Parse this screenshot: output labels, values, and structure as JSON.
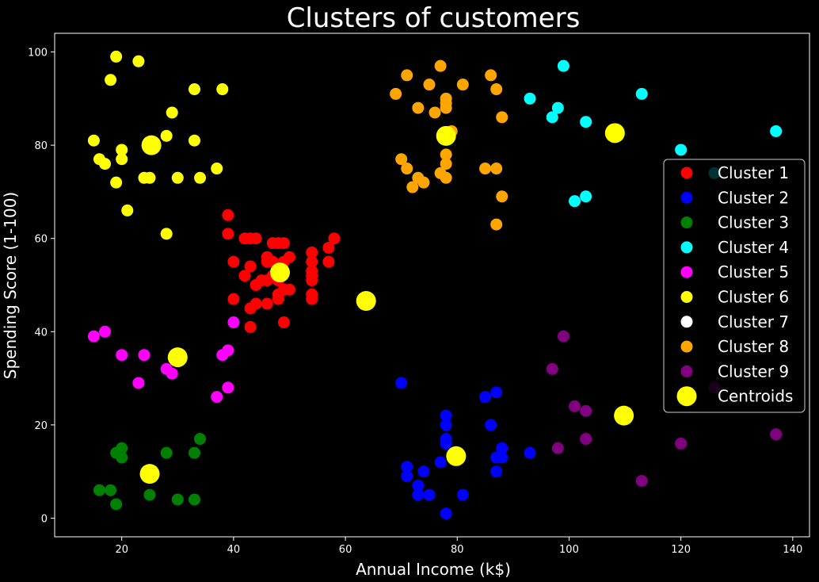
{
  "chart_data": {
    "type": "scatter",
    "title": "Clusters of customers",
    "xlabel": "Annual Income (k$)",
    "ylabel": "Spending Score (1-100)",
    "xlim": [
      8,
      143
    ],
    "ylim": [
      -4,
      104
    ],
    "xticks": [
      20,
      40,
      60,
      80,
      100,
      120,
      140
    ],
    "yticks": [
      0,
      20,
      40,
      60,
      80,
      100
    ],
    "grid": false,
    "legend_position": "right",
    "series": [
      {
        "name": "Cluster 1",
        "color": "#ff0000",
        "points": [
          [
            39,
            65
          ],
          [
            39,
            61
          ],
          [
            40,
            55
          ],
          [
            40,
            47
          ],
          [
            42,
            60
          ],
          [
            42,
            52
          ],
          [
            43,
            60
          ],
          [
            43,
            54
          ],
          [
            43,
            45
          ],
          [
            43,
            41
          ],
          [
            44,
            60
          ],
          [
            44,
            50
          ],
          [
            44,
            46
          ],
          [
            45,
            51
          ],
          [
            46,
            56
          ],
          [
            46,
            55
          ],
          [
            46,
            51
          ],
          [
            46,
            46
          ],
          [
            47,
            59
          ],
          [
            47,
            55
          ],
          [
            47,
            52
          ],
          [
            48,
            59
          ],
          [
            48,
            51
          ],
          [
            48,
            48
          ],
          [
            48,
            47
          ],
          [
            49,
            59
          ],
          [
            49,
            55
          ],
          [
            49,
            49
          ],
          [
            49,
            42
          ],
          [
            50,
            56
          ],
          [
            50,
            49
          ],
          [
            54,
            57
          ],
          [
            54,
            55
          ],
          [
            54,
            53
          ],
          [
            54,
            52
          ],
          [
            54,
            51
          ],
          [
            54,
            48
          ],
          [
            54,
            47
          ],
          [
            57,
            58
          ],
          [
            57,
            55
          ],
          [
            58,
            60
          ]
        ]
      },
      {
        "name": "Cluster 2",
        "color": "#0000ff",
        "points": [
          [
            70,
            29
          ],
          [
            71,
            11
          ],
          [
            71,
            9
          ],
          [
            73,
            7
          ],
          [
            73,
            5
          ],
          [
            74,
            10
          ],
          [
            75,
            5
          ],
          [
            77,
            12
          ],
          [
            78,
            22
          ],
          [
            78,
            20
          ],
          [
            78,
            17
          ],
          [
            78,
            16
          ],
          [
            78,
            1
          ],
          [
            81,
            5
          ],
          [
            85,
            26
          ],
          [
            86,
            20
          ],
          [
            87,
            27
          ],
          [
            87,
            13
          ],
          [
            87,
            10
          ],
          [
            88,
            15
          ],
          [
            88,
            13
          ],
          [
            93,
            14
          ]
        ]
      },
      {
        "name": "Cluster 3",
        "color": "#008000",
        "points": [
          [
            16,
            6
          ],
          [
            18,
            6
          ],
          [
            19,
            14
          ],
          [
            19,
            3
          ],
          [
            20,
            15
          ],
          [
            20,
            13
          ],
          [
            25,
            5
          ],
          [
            28,
            14
          ],
          [
            30,
            4
          ],
          [
            33,
            14
          ],
          [
            33,
            4
          ],
          [
            34,
            17
          ]
        ]
      },
      {
        "name": "Cluster 4",
        "color": "#00ffff",
        "points": [
          [
            93,
            90
          ],
          [
            97,
            86
          ],
          [
            98,
            88
          ],
          [
            99,
            97
          ],
          [
            101,
            68
          ],
          [
            103,
            85
          ],
          [
            103,
            69
          ],
          [
            113,
            91
          ],
          [
            120,
            79
          ],
          [
            126,
            74
          ],
          [
            137,
            83
          ]
        ]
      },
      {
        "name": "Cluster 5",
        "color": "#ff00ff",
        "points": [
          [
            15,
            39
          ],
          [
            17,
            40
          ],
          [
            20,
            35
          ],
          [
            23,
            29
          ],
          [
            24,
            35
          ],
          [
            28,
            32
          ],
          [
            29,
            31
          ],
          [
            37,
            26
          ],
          [
            38,
            35
          ],
          [
            39,
            36
          ],
          [
            39,
            28
          ],
          [
            40,
            42
          ]
        ]
      },
      {
        "name": "Cluster 6",
        "color": "#ffff00",
        "points": [
          [
            15,
            81
          ],
          [
            16,
            77
          ],
          [
            17,
            76
          ],
          [
            18,
            94
          ],
          [
            19,
            99
          ],
          [
            19,
            72
          ],
          [
            20,
            79
          ],
          [
            20,
            77
          ],
          [
            21,
            66
          ],
          [
            23,
            98
          ],
          [
            24,
            73
          ],
          [
            25,
            73
          ],
          [
            28,
            82
          ],
          [
            28,
            61
          ],
          [
            29,
            87
          ],
          [
            30,
            73
          ],
          [
            33,
            92
          ],
          [
            33,
            81
          ],
          [
            34,
            73
          ],
          [
            37,
            75
          ],
          [
            38,
            92
          ]
        ]
      },
      {
        "name": "Cluster 7",
        "color": "#ffffff",
        "points": []
      },
      {
        "name": "Cluster 8",
        "color": "#ffa500",
        "points": [
          [
            69,
            91
          ],
          [
            70,
            77
          ],
          [
            71,
            95
          ],
          [
            71,
            75
          ],
          [
            72,
            71
          ],
          [
            73,
            88
          ],
          [
            73,
            73
          ],
          [
            74,
            72
          ],
          [
            75,
            93
          ],
          [
            76,
            87
          ],
          [
            77,
            97
          ],
          [
            77,
            74
          ],
          [
            78,
            90
          ],
          [
            78,
            89
          ],
          [
            78,
            88
          ],
          [
            78,
            78
          ],
          [
            78,
            76
          ],
          [
            78,
            73
          ],
          [
            79,
            83
          ],
          [
            81,
            93
          ],
          [
            85,
            75
          ],
          [
            86,
            95
          ],
          [
            87,
            92
          ],
          [
            87,
            75
          ],
          [
            87,
            63
          ],
          [
            88,
            86
          ],
          [
            88,
            69
          ]
        ]
      },
      {
        "name": "Cluster 9",
        "color": "#800080",
        "points": [
          [
            97,
            32
          ],
          [
            98,
            15
          ],
          [
            99,
            39
          ],
          [
            101,
            24
          ],
          [
            103,
            23
          ],
          [
            103,
            17
          ],
          [
            113,
            8
          ],
          [
            120,
            16
          ],
          [
            126,
            28
          ],
          [
            137,
            18
          ]
        ]
      }
    ],
    "centroids": {
      "name": "Centroids",
      "color": "#ffff00",
      "points": [
        [
          48.3,
          52.7
        ],
        [
          79.8,
          13.3
        ],
        [
          25.0,
          9.5
        ],
        [
          108.2,
          82.6
        ],
        [
          30.0,
          34.5
        ],
        [
          25.3,
          80.0
        ],
        [
          63.7,
          46.6
        ],
        [
          78.0,
          82.0
        ],
        [
          109.8,
          22.0
        ]
      ]
    }
  }
}
